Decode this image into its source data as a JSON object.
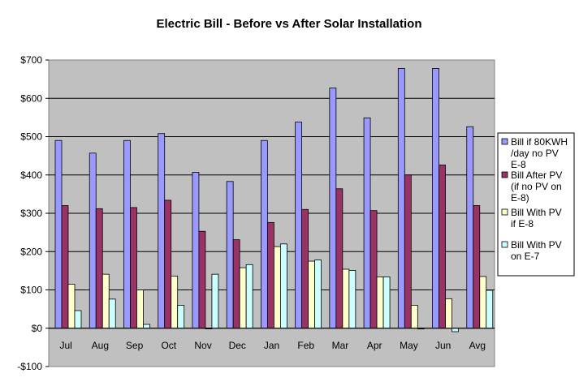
{
  "chart_data": {
    "type": "bar",
    "title": "Electric Bill  - Before vs After Solar Installation",
    "xlabel": "",
    "ylabel": "",
    "ylim": [
      -100,
      700
    ],
    "yticks": [
      -100,
      0,
      100,
      200,
      300,
      400,
      500,
      600,
      700
    ],
    "ytick_labels": [
      "-$100",
      "$0",
      "$100",
      "$200",
      "$300",
      "$400",
      "$500",
      "$600",
      "$700"
    ],
    "grid": true,
    "legend_position": "right",
    "categories": [
      "Jul",
      "Aug",
      "Sep",
      "Oct",
      "Nov",
      "Dec",
      "Jan",
      "Feb",
      "Mar",
      "Apr",
      "May",
      "Jun",
      "Avg"
    ],
    "series": [
      {
        "name": "Bill if 80KWH /day no PV E-8",
        "legend_lines": [
          "Bill if 80KWH",
          "/day no PV",
          "E-8"
        ],
        "color": "#9999ff",
        "values": [
          490,
          457,
          490,
          508,
          407,
          383,
          490,
          538,
          627,
          549,
          678,
          678,
          526
        ]
      },
      {
        "name": "Bill After PV (if no PV on E-8)",
        "legend_lines": [
          "Bill After PV",
          "(if no PV on",
          "E-8)"
        ],
        "color": "#993366",
        "values": [
          320,
          312,
          315,
          334,
          253,
          231,
          276,
          310,
          364,
          307,
          400,
          426,
          320
        ]
      },
      {
        "name": "Bill With PV if E-8",
        "legend_lines": [
          "Bill With PV",
          "if E-8"
        ],
        "color": "#ffffcc",
        "values": [
          115,
          141,
          100,
          136,
          0,
          158,
          213,
          175,
          154,
          134,
          60,
          77,
          135
        ]
      },
      {
        "name": "Bill With PV on E-7",
        "legend_lines": [
          "Bill With PV",
          "on E-7"
        ],
        "color": "#ccffff",
        "values": [
          46,
          76,
          10,
          60,
          141,
          166,
          220,
          178,
          151,
          134,
          -2,
          -9,
          99
        ]
      }
    ],
    "colors": {
      "plot_background": "#c0c0c0",
      "gridline": "#000000",
      "bar_outline": "#000000"
    }
  }
}
